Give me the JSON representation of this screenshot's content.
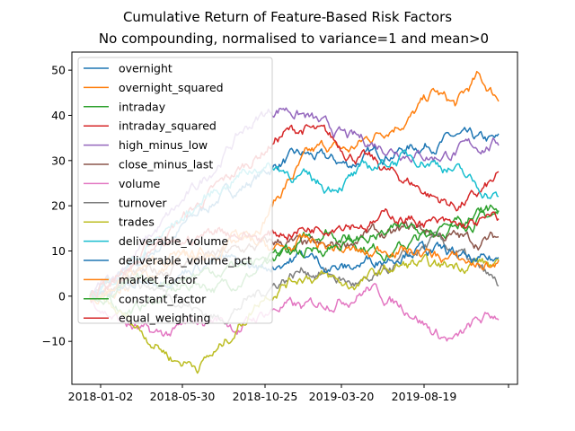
{
  "chart_data": {
    "type": "line",
    "title": "Cumulative Return of Feature-Based Risk Factors",
    "subtitle": "No compounding, normalised to variance=1 and mean>0",
    "xlabel": "",
    "ylabel": "",
    "x_ticks": [
      "2018-01-02",
      "2018-05-30",
      "2018-10-25",
      "2019-03-20",
      "2019-08-19",
      ""
    ],
    "y_ticks": [
      -10,
      0,
      10,
      20,
      30,
      40,
      50
    ],
    "ylim": [
      -19.5,
      54
    ],
    "grid": false,
    "legend_position": "top-left",
    "series": [
      {
        "name": "overnight",
        "color": "#1f77b4",
        "values": [
          0,
          3,
          6,
          10,
          14,
          18,
          22,
          24,
          27,
          30,
          31,
          30,
          29,
          31,
          32,
          33,
          34,
          35,
          34,
          34
        ]
      },
      {
        "name": "overnight_squared",
        "color": "#ff7f0e",
        "values": [
          0,
          1,
          3,
          5,
          7,
          9,
          11,
          13,
          17,
          24,
          30,
          33,
          32,
          35,
          38,
          40,
          45,
          42,
          48,
          44
        ]
      },
      {
        "name": "intraday",
        "color": "#2ca02c",
        "values": [
          0,
          -2,
          -3,
          -1,
          1,
          3,
          2,
          4,
          6,
          9,
          12,
          15,
          13,
          11,
          10,
          12,
          14,
          16,
          17,
          18
        ]
      },
      {
        "name": "intraday_squared",
        "color": "#d62728",
        "values": [
          0,
          3,
          7,
          12,
          16,
          20,
          24,
          28,
          32,
          36,
          37,
          35,
          32,
          30,
          27,
          25,
          22,
          20,
          22,
          26
        ]
      },
      {
        "name": "high_minus_low",
        "color": "#9467bd",
        "values": [
          0,
          4,
          9,
          14,
          19,
          24,
          30,
          36,
          40,
          42,
          40,
          37,
          35,
          34,
          33,
          32,
          31,
          32,
          33,
          34
        ]
      },
      {
        "name": "close_minus_last",
        "color": "#8c564b",
        "values": [
          0,
          2,
          4,
          5,
          7,
          8,
          9,
          10,
          11,
          12,
          11,
          10,
          12,
          14,
          13,
          15,
          14,
          13,
          12,
          13
        ]
      },
      {
        "name": "volume",
        "color": "#e377c2",
        "values": [
          0,
          -4,
          -7,
          -9,
          -8,
          -6,
          -5,
          -7,
          -4,
          -2,
          -3,
          -1,
          0,
          2,
          -1,
          -3,
          -8,
          -10,
          -6,
          -4
        ]
      },
      {
        "name": "turnover",
        "color": "#7f7f7f",
        "values": [
          0,
          2,
          4,
          2,
          0,
          -3,
          -5,
          -2,
          1,
          4,
          6,
          5,
          3,
          2,
          6,
          9,
          12,
          10,
          6,
          2
        ]
      },
      {
        "name": "trades",
        "color": "#bcbd22",
        "values": [
          0,
          -3,
          -6,
          -10,
          -14,
          -15,
          -12,
          -6,
          0,
          3,
          5,
          4,
          2,
          4,
          6,
          7,
          6,
          7,
          8,
          6
        ]
      },
      {
        "name": "deliverable_volume",
        "color": "#17becf",
        "values": [
          0,
          4,
          8,
          12,
          16,
          20,
          24,
          27,
          29,
          28,
          26,
          24,
          26,
          28,
          30,
          31,
          30,
          28,
          24,
          22
        ]
      },
      {
        "name": "deliverable_volume_pct",
        "color": "#1f77b4",
        "values": [
          0,
          1,
          2,
          4,
          5,
          7,
          8,
          7,
          6,
          8,
          9,
          7,
          6,
          8,
          9,
          11,
          10,
          9,
          7,
          8
        ]
      },
      {
        "name": "market_factor",
        "color": "#ff7f0e",
        "values": [
          0,
          2,
          5,
          7,
          9,
          8,
          10,
          12,
          11,
          10,
          12,
          11,
          10,
          9,
          11,
          10,
          9,
          8,
          7,
          7
        ]
      },
      {
        "name": "constant_factor",
        "color": "#2ca02c",
        "values": [
          0,
          1,
          2,
          3,
          4,
          5,
          6,
          7,
          8,
          9,
          10,
          11,
          12,
          13,
          14,
          15,
          16,
          17,
          18,
          19
        ]
      },
      {
        "name": "equal_weighting",
        "color": "#d62728",
        "values": [
          0,
          3,
          6,
          9,
          11,
          13,
          15,
          14,
          13,
          14,
          15,
          16,
          17,
          16,
          18,
          17,
          16,
          15,
          16,
          17
        ]
      }
    ]
  }
}
